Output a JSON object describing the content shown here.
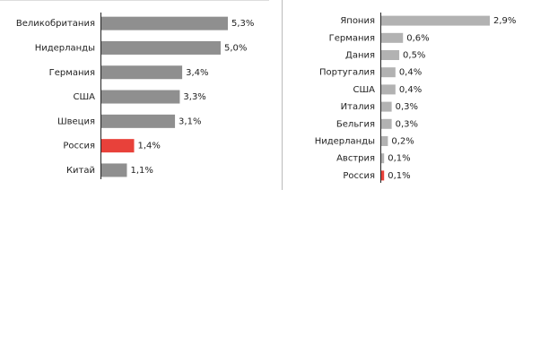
{
  "chart_data": [
    {
      "type": "bar",
      "orientation": "horizontal",
      "categories": [
        "Великобритания",
        "Нидерланды",
        "Германия",
        "США",
        "Швеция",
        "Россия",
        "Китай"
      ],
      "values": [
        5.3,
        5.0,
        3.4,
        3.3,
        3.1,
        1.4,
        1.1
      ],
      "value_labels": [
        "5,3%",
        "5,0%",
        "3,4%",
        "3,3%",
        "3,1%",
        "1,4%",
        "1,1%"
      ],
      "colors": [
        "#8f8f8f",
        "#8f8f8f",
        "#8f8f8f",
        "#8f8f8f",
        "#8f8f8f",
        "#e8413a",
        "#8f8f8f"
      ]
    },
    {
      "type": "bar",
      "orientation": "horizontal",
      "categories": [
        "Япония",
        "Германия",
        "Дания",
        "Португалия",
        "США",
        "Италия",
        "Бельгия",
        "Нидерланды",
        "Австрия",
        "Россия"
      ],
      "values": [
        2.9,
        0.6,
        0.5,
        0.4,
        0.4,
        0.3,
        0.3,
        0.2,
        0.1,
        0.1
      ],
      "value_labels": [
        "2,9%",
        "0,6%",
        "0,5%",
        "0,4%",
        "0,4%",
        "0,3%",
        "0,3%",
        "0,2%",
        "0,1%",
        "0,1%"
      ],
      "colors": [
        "#b2b2b2",
        "#b2b2b2",
        "#b2b2b2",
        "#b2b2b2",
        "#b2b2b2",
        "#b2b2b2",
        "#b2b2b2",
        "#b2b2b2",
        "#b2b2b2",
        "#e8413a"
      ]
    }
  ]
}
